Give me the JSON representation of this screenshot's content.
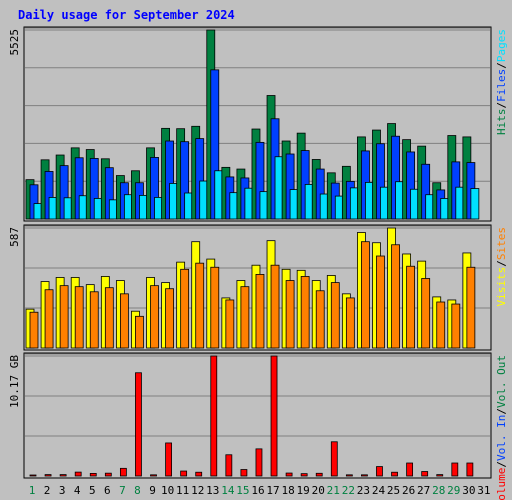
{
  "colors": {
    "background": "#c0c0c0",
    "panel_border": "#000000",
    "gridline": "#808080",
    "title": "#0000ff",
    "hits": "#008040",
    "files": "#0040ff",
    "pages": "#00e0ff",
    "visits": "#ffff00",
    "sites": "#ff8000",
    "volume": "#ff0000",
    "vol_in": "#0040ff",
    "vol_out": "#008040",
    "weekend_label": "#008040",
    "weekday_label": "#000000"
  },
  "chart_data": {
    "type": "bar",
    "title": "Daily usage for September 2024",
    "categories": [
      "1",
      "2",
      "3",
      "4",
      "5",
      "6",
      "7",
      "8",
      "9",
      "10",
      "11",
      "12",
      "13",
      "14",
      "15",
      "16",
      "17",
      "18",
      "19",
      "20",
      "21",
      "22",
      "23",
      "24",
      "25",
      "26",
      "27",
      "28",
      "29",
      "30",
      "31"
    ],
    "weekend_days": [
      "1",
      "7",
      "8",
      "14",
      "15",
      "21",
      "22",
      "28",
      "29"
    ],
    "panels": [
      {
        "id": "requests",
        "max_label": "5525",
        "max_value": 5525,
        "series": [
          {
            "name": "Hits",
            "values": [
              1150,
              1730,
              1870,
              2080,
              2030,
              1760,
              1270,
              1410,
              2080,
              2650,
              2640,
              2710,
              5525,
              1510,
              1460,
              2630,
              3610,
              2280,
              2510,
              1740,
              1350,
              1540,
              2400,
              2600,
              2790,
              2320,
              2130,
              1060,
              2440,
              2400,
              0
            ]
          },
          {
            "name": "Files",
            "values": [
              1000,
              1390,
              1560,
              1790,
              1770,
              1500,
              1060,
              1060,
              1800,
              2280,
              2260,
              2350,
              4360,
              1230,
              1200,
              2240,
              2930,
              1900,
              2000,
              1460,
              1050,
              1100,
              1990,
              2200,
              2420,
              1960,
              1600,
              850,
              1670,
              1650,
              0
            ]
          },
          {
            "name": "Pages",
            "values": [
              450,
              630,
              620,
              680,
              600,
              560,
              710,
              690,
              630,
              1040,
              760,
              1110,
              1410,
              770,
              900,
              800,
              1820,
              860,
              1010,
              730,
              670,
              910,
              1070,
              930,
              1090,
              870,
              710,
              600,
              930,
              890,
              0
            ]
          }
        ],
        "legend": [
          "Hits",
          "Files",
          "Pages"
        ]
      },
      {
        "id": "visits",
        "max_label": "587",
        "max_value": 587,
        "series": [
          {
            "name": "Visits",
            "values": [
              190,
              325,
              345,
              345,
              310,
              350,
              330,
              180,
              345,
              320,
              420,
              520,
              435,
              245,
              330,
              405,
              525,
              385,
              380,
              330,
              355,
              265,
              565,
              515,
              587,
              460,
              425,
              250,
              235,
              465,
              0
            ]
          },
          {
            "name": "Sites",
            "values": [
              175,
              285,
              305,
              300,
              275,
              295,
              265,
              155,
              305,
              290,
              385,
              415,
              395,
              235,
              300,
              360,
              405,
              330,
              350,
              280,
              320,
              245,
              520,
              450,
              505,
              400,
              340,
              225,
              215,
              395,
              0
            ]
          }
        ],
        "legend": [
          "Visits",
          "Sites"
        ]
      },
      {
        "id": "kbytes",
        "max_label": "10.17 GB",
        "max_value": 10.17,
        "series": [
          {
            "name": "Volume",
            "values": [
              0.07,
              0.12,
              0.12,
              0.33,
              0.22,
              0.24,
              0.65,
              8.75,
              0.1,
              2.8,
              0.42,
              0.32,
              10.17,
              1.8,
              0.55,
              2.3,
              10.17,
              0.25,
              0.2,
              0.23,
              2.9,
              0.1,
              0.1,
              0.8,
              0.32,
              1.1,
              0.38,
              0.12,
              1.1,
              1.1,
              0
            ]
          },
          {
            "name": "Vol. In",
            "values": []
          },
          {
            "name": "Vol. Out",
            "values": []
          }
        ],
        "legend": [
          "Volume",
          "Vol. In",
          "Vol. Out"
        ]
      }
    ]
  },
  "labels": {
    "title": "Daily usage for September 2024",
    "panel1_max": "5525",
    "panel2_max": "587",
    "panel3_max": "10.17 GB",
    "legend1": [
      {
        "text": "Hits",
        "color": "#008040"
      },
      {
        "text": "/",
        "color": "#000000"
      },
      {
        "text": "Files",
        "color": "#0040ff"
      },
      {
        "text": "/",
        "color": "#000000"
      },
      {
        "text": "Pages",
        "color": "#00e0ff"
      }
    ],
    "legend2": [
      {
        "text": "Visits",
        "color": "#ffff00"
      },
      {
        "text": "/",
        "color": "#000000"
      },
      {
        "text": "Sites",
        "color": "#ff8000"
      }
    ],
    "legend3": [
      {
        "text": "Volume",
        "color": "#ff0000"
      },
      {
        "text": "/",
        "color": "#000000"
      },
      {
        "text": "Vol. In",
        "color": "#0040ff"
      },
      {
        "text": "/",
        "color": "#000000"
      },
      {
        "text": "Vol. Out",
        "color": "#008040"
      }
    ]
  }
}
